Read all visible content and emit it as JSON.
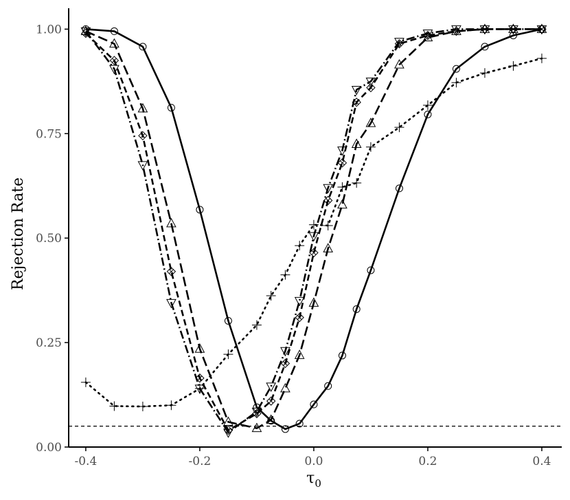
{
  "chart_data": {
    "type": "line",
    "title": "",
    "xlabel": "τ",
    "xlabel_subscript": "0",
    "ylabel": "Rejection Rate",
    "xlim": [
      -0.43,
      0.435
    ],
    "ylim": [
      0,
      1.05
    ],
    "x_ticks": [
      -0.4,
      -0.2,
      0.0,
      0.2,
      0.4
    ],
    "x_tick_labels": [
      "-0.4",
      "-0.2",
      "0.0",
      "0.2",
      "0.4"
    ],
    "y_ticks": [
      0,
      0.25,
      0.5,
      0.75,
      1.0
    ],
    "y_tick_labels": [
      "0.00",
      "0.25",
      "0.50",
      "0.75",
      "1.00"
    ],
    "reference_line": {
      "y": 0.05,
      "style": "dashed"
    },
    "grid": false,
    "legend": "none",
    "series": [
      {
        "marker": "circle",
        "line_style": "solid",
        "color": "#000000",
        "x": [
          -0.4,
          -0.35,
          -0.3,
          -0.25,
          -0.2,
          -0.15,
          -0.1,
          -0.075,
          -0.05,
          -0.025,
          0.0,
          0.025,
          0.05,
          0.075,
          0.1,
          0.15,
          0.2,
          0.25,
          0.3,
          0.35,
          0.4
        ],
        "y": [
          1.0,
          0.995,
          0.958,
          0.812,
          0.568,
          0.302,
          0.095,
          0.063,
          0.043,
          0.056,
          0.102,
          0.146,
          0.219,
          0.33,
          0.423,
          0.619,
          0.796,
          0.905,
          0.958,
          0.985,
          1.0
        ]
      },
      {
        "marker": "triangle-up",
        "line_style": "longdash",
        "color": "#000000",
        "x": [
          -0.4,
          -0.35,
          -0.3,
          -0.25,
          -0.2,
          -0.15,
          -0.1,
          -0.075,
          -0.05,
          -0.025,
          0.0,
          0.025,
          0.05,
          0.075,
          0.1,
          0.15,
          0.2,
          0.25,
          0.3,
          0.35,
          0.4
        ],
        "y": [
          0.995,
          0.965,
          0.81,
          0.535,
          0.235,
          0.06,
          0.045,
          0.065,
          0.14,
          0.22,
          0.345,
          0.475,
          0.58,
          0.725,
          0.775,
          0.915,
          0.98,
          0.995,
          1.0,
          1.0,
          1.0
        ]
      },
      {
        "marker": "diamond-x",
        "line_style": "dashed",
        "color": "#000000",
        "x": [
          -0.4,
          -0.35,
          -0.3,
          -0.25,
          -0.2,
          -0.15,
          -0.1,
          -0.075,
          -0.05,
          -0.025,
          0.0,
          0.025,
          0.05,
          0.075,
          0.1,
          0.15,
          0.2,
          0.25,
          0.3,
          0.35,
          0.4
        ],
        "y": [
          0.99,
          0.925,
          0.745,
          0.42,
          0.165,
          0.04,
          0.08,
          0.11,
          0.2,
          0.31,
          0.465,
          0.59,
          0.68,
          0.825,
          0.86,
          0.965,
          0.985,
          0.995,
          1.0,
          1.0,
          1.0
        ]
      },
      {
        "marker": "triangle-down",
        "line_style": "dotdash",
        "color": "#000000",
        "x": [
          -0.4,
          -0.35,
          -0.3,
          -0.25,
          -0.2,
          -0.15,
          -0.1,
          -0.075,
          -0.05,
          -0.025,
          0.0,
          0.025,
          0.05,
          0.075,
          0.1,
          0.15,
          0.2,
          0.25,
          0.3,
          0.35,
          0.4
        ],
        "y": [
          0.995,
          0.905,
          0.675,
          0.345,
          0.14,
          0.035,
          0.085,
          0.145,
          0.23,
          0.35,
          0.505,
          0.62,
          0.71,
          0.855,
          0.875,
          0.97,
          0.99,
          1.0,
          1.0,
          1.0,
          1.0
        ]
      },
      {
        "marker": "plus",
        "line_style": "dotted",
        "color": "#000000",
        "x": [
          -0.4,
          -0.35,
          -0.3,
          -0.25,
          -0.2,
          -0.15,
          -0.1,
          -0.075,
          -0.05,
          -0.025,
          0.0,
          0.025,
          0.05,
          0.075,
          0.1,
          0.15,
          0.2,
          0.25,
          0.3,
          0.35,
          0.4
        ],
        "y": [
          0.155,
          0.098,
          0.097,
          0.1,
          0.14,
          0.222,
          0.292,
          0.362,
          0.412,
          0.482,
          0.532,
          0.53,
          0.622,
          0.632,
          0.718,
          0.765,
          0.818,
          0.872,
          0.895,
          0.912,
          0.93
        ]
      }
    ]
  }
}
